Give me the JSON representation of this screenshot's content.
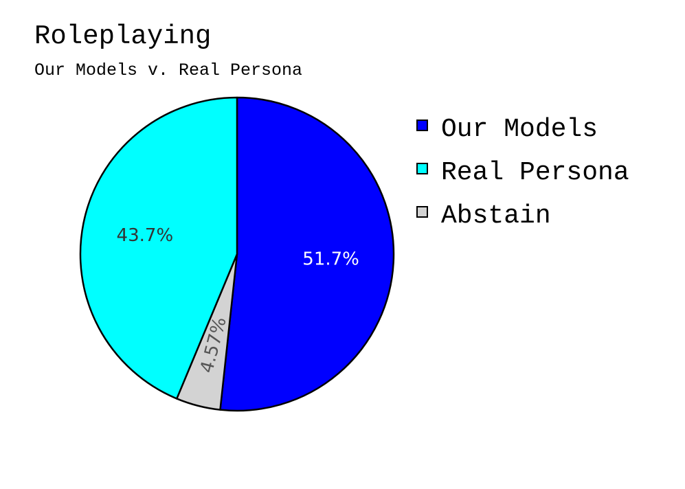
{
  "chart_data": {
    "type": "pie",
    "title": "Roleplaying",
    "subtitle": "Our Models v. Real Persona",
    "start_angle_deg": 90,
    "direction": "clockwise",
    "legend_position": "right",
    "slices": [
      {
        "label": "Our Models",
        "value": 51.7,
        "display": "51.7%",
        "color": "#0000ff",
        "label_color": "#ffffff",
        "label_rotated": false
      },
      {
        "label": "Abstain",
        "value": 4.57,
        "display": "4.57%",
        "color": "#d3d3d3",
        "label_color": "#555555",
        "label_rotated": true
      },
      {
        "label": "Real Persona",
        "value": 43.7,
        "display": "43.7%",
        "color": "#00ffff",
        "label_color": "#333333",
        "label_rotated": false
      }
    ],
    "legend": [
      {
        "label": "Our Models",
        "color": "#0000ff"
      },
      {
        "label": "Real Persona",
        "color": "#00ffff"
      },
      {
        "label": "Abstain",
        "color": "#d3d3d3"
      }
    ]
  }
}
